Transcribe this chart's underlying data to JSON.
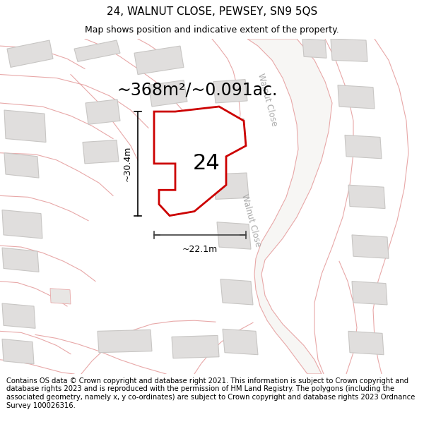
{
  "title": "24, WALNUT CLOSE, PEWSEY, SN9 5QS",
  "subtitle": "Map shows position and indicative extent of the property.",
  "area_label": "~368m²/~0.091ac.",
  "property_number": "24",
  "dim_height": "~30.4m",
  "dim_width": "~22.1m",
  "street_name_upper": "Walnut Close",
  "street_name_lower": "Walnut Close",
  "footer": "Contains OS data © Crown copyright and database right 2021. This information is subject to Crown copyright and database rights 2023 and is reproduced with the permission of HM Land Registry. The polygons (including the associated geometry, namely x, y co-ordinates) are subject to Crown copyright and database rights 2023 Ordnance Survey 100026316.",
  "map_bg": "#f7f6f4",
  "building_fill": "#e0dedd",
  "building_stroke": "#c8c6c4",
  "road_stroke": "#e8a8a8",
  "road_fill": "#f7f6f4",
  "property_fill": "#ffffff",
  "property_stroke": "#cc0000",
  "title_fontsize": 11,
  "subtitle_fontsize": 9,
  "footer_fontsize": 7.2,
  "area_fontsize": 17,
  "number_fontsize": 22,
  "dim_fontsize": 9,
  "street_fontsize": 8.5
}
